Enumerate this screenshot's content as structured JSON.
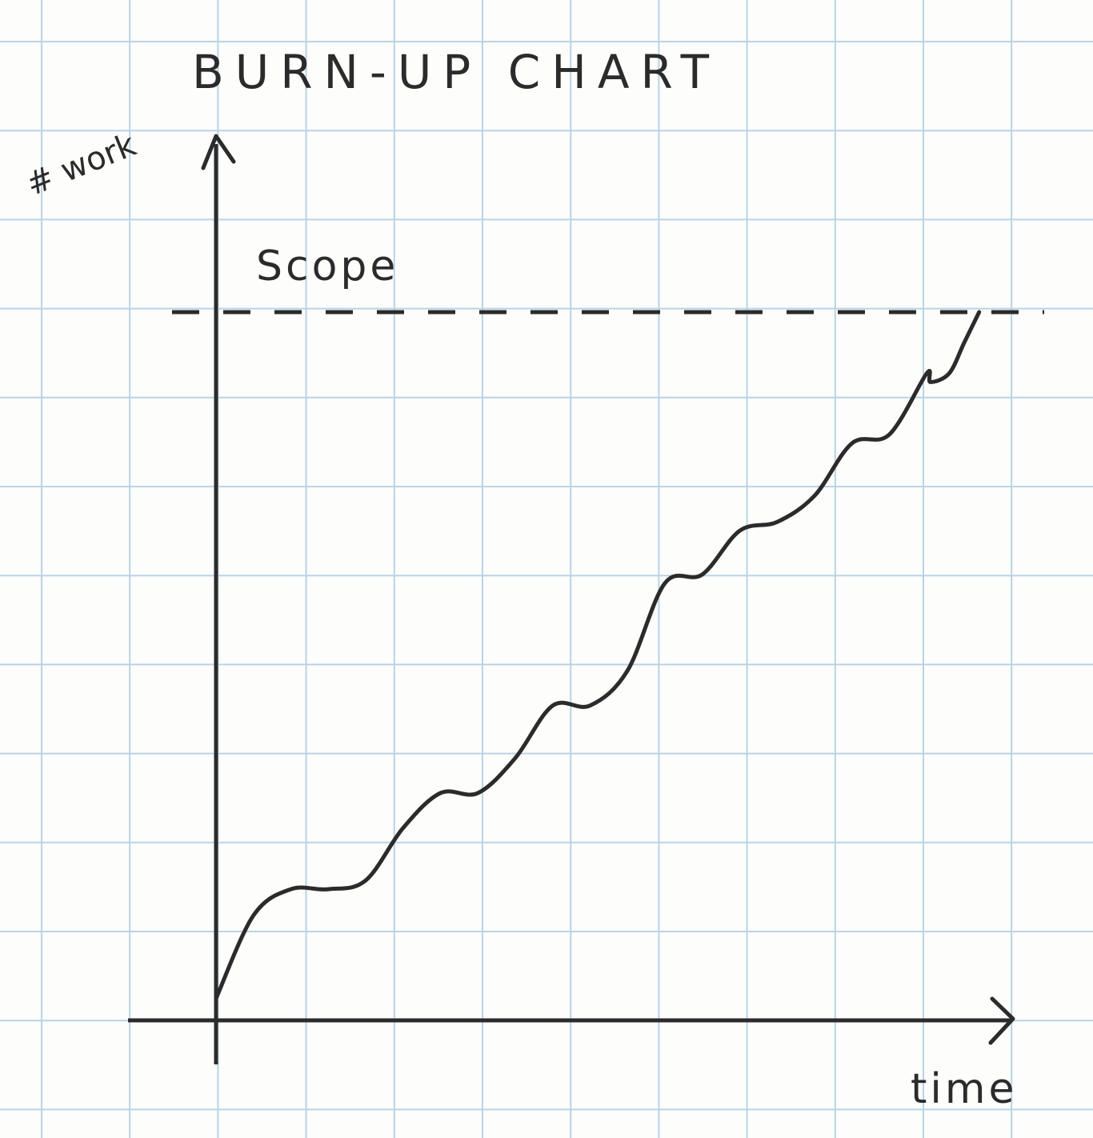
{
  "title": "BURN-UP CHART",
  "chart_data": {
    "type": "line",
    "title": "BURN-UP CHART",
    "xlabel": "time",
    "ylabel": "# work",
    "grid": true,
    "xlim": [
      0,
      10
    ],
    "ylim": [
      0,
      10
    ],
    "scope": {
      "label": "Scope",
      "value": 8.1
    },
    "series": [
      {
        "x": [
          0,
          0.5,
          1,
          1.5,
          2,
          2.5,
          3,
          3.5,
          4,
          4.5,
          5,
          5.5,
          6,
          6.5,
          7,
          7.5,
          8,
          8.5,
          9,
          9.5,
          9.55,
          9.8,
          10,
          10.2
        ],
        "y": [
          0.25,
          1.2,
          1.5,
          1.5,
          1.6,
          2.2,
          2.6,
          2.6,
          3.0,
          3.6,
          3.6,
          4.0,
          5.0,
          5.1,
          5.6,
          5.7,
          6.0,
          6.6,
          6.7,
          7.4,
          7.3,
          7.4,
          7.75,
          8.1
        ]
      }
    ]
  },
  "colors": {
    "ink": "#2b2b2b",
    "grid": "#b9d3e6",
    "paper": "#fdfdfb"
  }
}
